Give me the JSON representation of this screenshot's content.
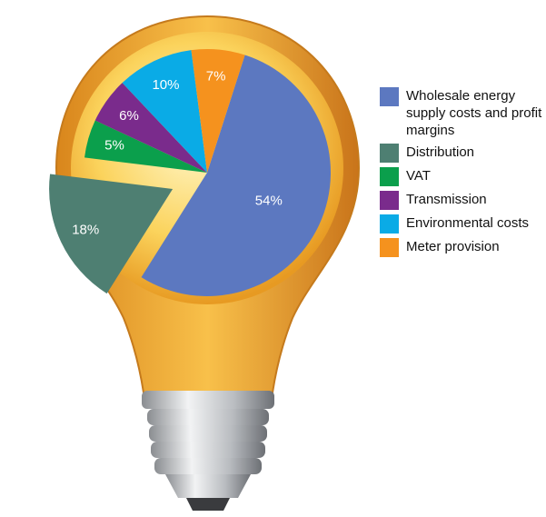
{
  "chart_data": {
    "type": "pie",
    "categories": [
      "Wholesale energy supply costs and profit margins",
      "Distribution",
      "VAT",
      "Transmission",
      "Environmental costs",
      "Meter provision"
    ],
    "values": [
      54,
      18,
      5,
      6,
      10,
      7
    ],
    "value_labels": [
      "54%",
      "18%",
      "5%",
      "6%",
      "10%",
      "7%"
    ],
    "colors": [
      "#5c78c0",
      "#4e7f72",
      "#0b9f4c",
      "#7a2b8c",
      "#0aabe6",
      "#f5921e"
    ],
    "exploded": [
      false,
      true,
      false,
      false,
      false,
      false
    ]
  }
}
